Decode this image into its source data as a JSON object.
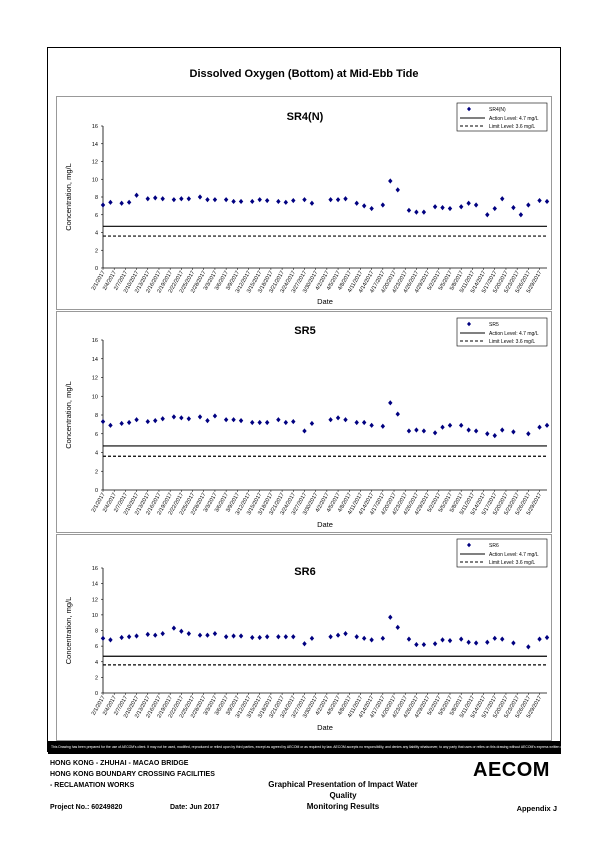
{
  "page": {
    "main_title": "Dissolved Oxygen (Bottom) at Mid-Ebb Tide",
    "disclaimer": "This Drawing has been prepared for the use of AECOM's client. It may not be used, modified, reproduced or relied upon by third parties, except as agreed by AECOM or as required by law. AECOM accepts no responsibility, and denies any liability whatsoever, to any party that uses or relies on this drawing without AECOM's express written consent.",
    "footer": {
      "line1": "HONG KONG - ZHUHAI - MACAO BRIDGE",
      "line2": "HONG KONG BOUNDARY CROSSING FACILITIES",
      "line3": "- RECLAMATION WORKS",
      "heading1": "Graphical Presentation of Impact Water Quality",
      "heading2": "Monitoring Results",
      "project": "Project No.: 60249820",
      "date": "Date: Jun 2017",
      "appendix": "Appendix J",
      "logo": "AECOM"
    }
  },
  "chart_data": [
    {
      "type": "scatter",
      "title": "SR4(N)",
      "xlabel": "Date",
      "ylabel": "Concentration, mg/L",
      "ylim": [
        0,
        16
      ],
      "yticks": [
        0,
        2,
        4,
        6,
        8,
        10,
        12,
        14,
        16
      ],
      "grid": false,
      "legend_position": "top-right",
      "x_tick_labels": [
        "2/1/2017",
        "2/4/2017",
        "2/7/2017",
        "2/10/2017",
        "2/13/2017",
        "2/16/2017",
        "2/19/2017",
        "2/22/2017",
        "2/25/2017",
        "2/28/2017",
        "3/3/2017",
        "3/6/2017",
        "3/9/2017",
        "3/12/2017",
        "3/15/2017",
        "3/18/2017",
        "3/21/2017",
        "3/24/2017",
        "3/27/2017",
        "3/30/2017",
        "4/2/2017",
        "4/5/2017",
        "4/8/2017",
        "4/11/2017",
        "4/14/2017",
        "4/17/2017",
        "4/20/2017",
        "4/23/2017",
        "4/26/2017",
        "4/29/2017",
        "5/2/2017",
        "5/5/2017",
        "5/8/2017",
        "5/11/2017",
        "5/14/2017",
        "5/17/2017",
        "5/20/2017",
        "5/23/2017",
        "5/26/2017",
        "5/29/2017"
      ],
      "x_day_range": [
        0,
        119
      ],
      "series": [
        {
          "name": "SR4(N)",
          "marker": "diamond",
          "color": "#000080",
          "x": [
            "2/1/2017",
            "2/3/2017",
            "2/6/2017",
            "2/8/2017",
            "2/10/2017",
            "2/13/2017",
            "2/15/2017",
            "2/17/2017",
            "2/20/2017",
            "2/22/2017",
            "2/24/2017",
            "2/27/2017",
            "3/1/2017",
            "3/3/2017",
            "3/6/2017",
            "3/8/2017",
            "3/10/2017",
            "3/13/2017",
            "3/15/2017",
            "3/17/2017",
            "3/20/2017",
            "3/22/2017",
            "3/24/2017",
            "3/27/2017",
            "3/29/2017",
            "4/3/2017",
            "4/5/2017",
            "4/7/2017",
            "4/10/2017",
            "4/12/2017",
            "4/14/2017",
            "4/17/2017",
            "4/19/2017",
            "4/21/2017",
            "4/24/2017",
            "4/26/2017",
            "4/28/2017",
            "5/1/2017",
            "5/3/2017",
            "5/5/2017",
            "5/8/2017",
            "5/10/2017",
            "5/12/2017",
            "5/15/2017",
            "5/17/2017",
            "5/19/2017",
            "5/22/2017",
            "5/24/2017",
            "5/26/2017",
            "5/29/2017",
            "5/31/2017"
          ],
          "y": [
            7.1,
            7.4,
            7.3,
            7.4,
            8.2,
            7.8,
            7.9,
            7.8,
            7.7,
            7.8,
            7.8,
            8.0,
            7.7,
            7.7,
            7.7,
            7.5,
            7.5,
            7.5,
            7.7,
            7.6,
            7.5,
            7.4,
            7.6,
            7.7,
            7.3,
            7.7,
            7.7,
            7.8,
            7.3,
            7.0,
            6.7,
            7.1,
            9.8,
            8.8,
            6.5,
            6.3,
            6.3,
            6.9,
            6.8,
            6.7,
            6.9,
            7.3,
            7.1,
            6.0,
            6.7,
            7.8,
            6.8,
            6.0,
            7.1,
            7.6,
            7.5
          ]
        },
        {
          "name": "Action Level: 4.7 mg/L",
          "type": "hline",
          "value": 4.7,
          "style": "solid"
        },
        {
          "name": "Limit Level: 3.6 mg/L",
          "type": "hline",
          "value": 3.6,
          "style": "dashed"
        }
      ]
    },
    {
      "type": "scatter",
      "title": "SR5",
      "xlabel": "Date",
      "ylabel": "Concentration, mg/L",
      "ylim": [
        0,
        16
      ],
      "yticks": [
        0,
        2,
        4,
        6,
        8,
        10,
        12,
        14,
        16
      ],
      "grid": false,
      "legend_position": "top-right",
      "x_tick_labels": [
        "2/1/2017",
        "2/4/2017",
        "2/7/2017",
        "2/10/2017",
        "2/13/2017",
        "2/16/2017",
        "2/19/2017",
        "2/22/2017",
        "2/25/2017",
        "2/28/2017",
        "3/3/2017",
        "3/6/2017",
        "3/9/2017",
        "3/12/2017",
        "3/15/2017",
        "3/18/2017",
        "3/21/2017",
        "3/24/2017",
        "3/27/2017",
        "3/30/2017",
        "4/2/2017",
        "4/5/2017",
        "4/8/2017",
        "4/11/2017",
        "4/14/2017",
        "4/17/2017",
        "4/20/2017",
        "4/23/2017",
        "4/26/2017",
        "4/29/2017",
        "5/2/2017",
        "5/5/2017",
        "5/8/2017",
        "5/11/2017",
        "5/14/2017",
        "5/17/2017",
        "5/20/2017",
        "5/23/2017",
        "5/26/2017",
        "5/29/2017"
      ],
      "x_day_range": [
        0,
        119
      ],
      "series": [
        {
          "name": "SR5",
          "marker": "diamond",
          "color": "#000080",
          "x": [
            "2/1/2017",
            "2/3/2017",
            "2/6/2017",
            "2/8/2017",
            "2/10/2017",
            "2/13/2017",
            "2/15/2017",
            "2/17/2017",
            "2/20/2017",
            "2/22/2017",
            "2/24/2017",
            "2/27/2017",
            "3/1/2017",
            "3/3/2017",
            "3/6/2017",
            "3/8/2017",
            "3/10/2017",
            "3/13/2017",
            "3/15/2017",
            "3/17/2017",
            "3/20/2017",
            "3/22/2017",
            "3/24/2017",
            "3/27/2017",
            "3/29/2017",
            "4/3/2017",
            "4/5/2017",
            "4/7/2017",
            "4/10/2017",
            "4/12/2017",
            "4/14/2017",
            "4/17/2017",
            "4/19/2017",
            "4/21/2017",
            "4/24/2017",
            "4/26/2017",
            "4/28/2017",
            "5/1/2017",
            "5/3/2017",
            "5/5/2017",
            "5/8/2017",
            "5/10/2017",
            "5/12/2017",
            "5/15/2017",
            "5/17/2017",
            "5/19/2017",
            "5/22/2017",
            "5/26/2017",
            "5/29/2017",
            "5/31/2017"
          ],
          "y": [
            7.3,
            6.9,
            7.1,
            7.2,
            7.5,
            7.3,
            7.4,
            7.6,
            7.8,
            7.7,
            7.6,
            7.8,
            7.4,
            7.9,
            7.5,
            7.5,
            7.4,
            7.2,
            7.2,
            7.2,
            7.5,
            7.2,
            7.3,
            6.3,
            7.1,
            7.5,
            7.7,
            7.5,
            7.2,
            7.2,
            6.9,
            6.8,
            9.3,
            8.1,
            6.3,
            6.4,
            6.3,
            6.1,
            6.7,
            6.9,
            6.9,
            6.4,
            6.3,
            6.0,
            5.8,
            6.4,
            6.2,
            6.0,
            6.7,
            6.9
          ]
        },
        {
          "name": "Action Level: 4.7 mg/L",
          "type": "hline",
          "value": 4.7,
          "style": "solid"
        },
        {
          "name": "Limit Level: 3.6 mg/L",
          "type": "hline",
          "value": 3.6,
          "style": "dashed"
        }
      ]
    },
    {
      "type": "scatter",
      "title": "SR6",
      "xlabel": "Date",
      "ylabel": "Concentration, mg/L",
      "ylim": [
        0,
        16
      ],
      "yticks": [
        0,
        2,
        4,
        6,
        8,
        10,
        12,
        14,
        16
      ],
      "grid": false,
      "legend_position": "top-right",
      "x_tick_labels": [
        "2/1/2017",
        "2/4/2017",
        "2/7/2017",
        "2/10/2017",
        "2/13/2017",
        "2/16/2017",
        "2/19/2017",
        "2/22/2017",
        "2/25/2017",
        "2/28/2017",
        "3/3/2017",
        "3/6/2017",
        "3/9/2017",
        "3/12/2017",
        "3/15/2017",
        "3/18/2017",
        "3/21/2017",
        "3/24/2017",
        "3/27/2017",
        "3/30/2017",
        "4/2/2017",
        "4/5/2017",
        "4/8/2017",
        "4/11/2017",
        "4/14/2017",
        "4/17/2017",
        "4/20/2017",
        "4/23/2017",
        "4/26/2017",
        "4/29/2017",
        "5/2/2017",
        "5/5/2017",
        "5/8/2017",
        "5/11/2017",
        "5/14/2017",
        "5/17/2017",
        "5/20/2017",
        "5/23/2017",
        "5/26/2017",
        "5/29/2017"
      ],
      "x_day_range": [
        0,
        119
      ],
      "series": [
        {
          "name": "SR6",
          "marker": "diamond",
          "color": "#000080",
          "x": [
            "2/1/2017",
            "2/3/2017",
            "2/6/2017",
            "2/8/2017",
            "2/10/2017",
            "2/13/2017",
            "2/15/2017",
            "2/17/2017",
            "2/20/2017",
            "2/22/2017",
            "2/24/2017",
            "2/27/2017",
            "3/1/2017",
            "3/3/2017",
            "3/6/2017",
            "3/8/2017",
            "3/10/2017",
            "3/13/2017",
            "3/15/2017",
            "3/17/2017",
            "3/20/2017",
            "3/22/2017",
            "3/24/2017",
            "3/27/2017",
            "3/29/2017",
            "4/3/2017",
            "4/5/2017",
            "4/7/2017",
            "4/10/2017",
            "4/12/2017",
            "4/14/2017",
            "4/17/2017",
            "4/19/2017",
            "4/21/2017",
            "4/24/2017",
            "4/26/2017",
            "4/28/2017",
            "5/1/2017",
            "5/3/2017",
            "5/5/2017",
            "5/8/2017",
            "5/10/2017",
            "5/12/2017",
            "5/15/2017",
            "5/17/2017",
            "5/19/2017",
            "5/22/2017",
            "5/26/2017",
            "5/29/2017",
            "5/31/2017"
          ],
          "y": [
            7.0,
            6.8,
            7.1,
            7.2,
            7.3,
            7.5,
            7.4,
            7.6,
            8.3,
            7.9,
            7.6,
            7.4,
            7.4,
            7.6,
            7.2,
            7.3,
            7.3,
            7.1,
            7.1,
            7.2,
            7.2,
            7.2,
            7.2,
            6.3,
            7.0,
            7.2,
            7.4,
            7.6,
            7.2,
            7.0,
            6.8,
            7.0,
            9.7,
            8.4,
            6.9,
            6.2,
            6.2,
            6.3,
            6.8,
            6.7,
            6.9,
            6.5,
            6.4,
            6.5,
            7.0,
            6.9,
            6.4,
            5.9,
            6.9,
            7.1
          ]
        },
        {
          "name": "Action Level: 4.7 mg/L",
          "type": "hline",
          "value": 4.7,
          "style": "solid"
        },
        {
          "name": "Limit Level: 3.6 mg/L",
          "type": "hline",
          "value": 3.6,
          "style": "dashed"
        }
      ]
    }
  ]
}
